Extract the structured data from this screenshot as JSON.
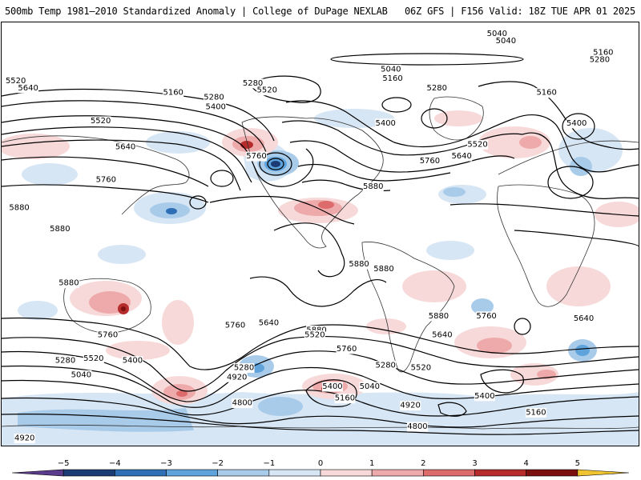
{
  "header": {
    "left_title": "500mb Temp 1981–2010 Standardized Anomaly | College of DuPage NEXLAB",
    "right_title": "06Z GFS | F156 Valid: 18Z TUE APR 01 2025"
  },
  "map": {
    "projection": "equirectangular",
    "contour_field": "500mb geopotential height (dam)",
    "contour_labels": [
      {
        "text": "5040",
        "lon": -80,
        "lat": 85
      },
      {
        "text": "5040",
        "lon": -75,
        "lat": 82
      },
      {
        "text": "5160",
        "lon": -20,
        "lat": 77
      },
      {
        "text": "5280",
        "lon": -22,
        "lat": 74
      },
      {
        "text": "5040",
        "lon": -140,
        "lat": 70
      },
      {
        "text": "5160",
        "lon": -139,
        "lat": 66
      },
      {
        "text": "5280",
        "lon": -114,
        "lat": 62
      },
      {
        "text": "5520",
        "lon": 8,
        "lat": 65
      },
      {
        "text": "5640",
        "lon": 15,
        "lat": 62
      },
      {
        "text": "5160",
        "lon": -52,
        "lat": 60
      },
      {
        "text": "5400",
        "lon": -35,
        "lat": 47
      },
      {
        "text": "5160",
        "lon": 97,
        "lat": 60
      },
      {
        "text": "5280",
        "lon": 142,
        "lat": 64
      },
      {
        "text": "5520",
        "lon": 150,
        "lat": 61
      },
      {
        "text": "5280",
        "lon": 120,
        "lat": 58
      },
      {
        "text": "5400",
        "lon": 121,
        "lat": 54
      },
      {
        "text": "5520",
        "lon": 56,
        "lat": 48
      },
      {
        "text": "5400",
        "lon": -143,
        "lat": 47
      },
      {
        "text": "5520",
        "lon": -91,
        "lat": 38
      },
      {
        "text": "5640",
        "lon": -100,
        "lat": 33
      },
      {
        "text": "5760",
        "lon": -118,
        "lat": 31
      },
      {
        "text": "5760",
        "lon": 144,
        "lat": 33
      },
      {
        "text": "5640",
        "lon": 70,
        "lat": 37
      },
      {
        "text": "5760",
        "lon": 59,
        "lat": 23
      },
      {
        "text": "5880",
        "lon": 10,
        "lat": 11
      },
      {
        "text": "5880",
        "lon": -150,
        "lat": 20
      },
      {
        "text": "5880",
        "lon": -144,
        "lat": -15
      },
      {
        "text": "5880",
        "lon": 178,
        "lat": -41
      },
      {
        "text": "5880",
        "lon": 33,
        "lat": 2
      },
      {
        "text": "5880",
        "lon": 38,
        "lat": -21
      },
      {
        "text": "5880",
        "lon": -158,
        "lat": -13
      },
      {
        "text": "5880",
        "lon": -113,
        "lat": -35
      },
      {
        "text": "5760",
        "lon": -86,
        "lat": -35
      },
      {
        "text": "5760",
        "lon": 60,
        "lat": -43
      },
      {
        "text": "5760",
        "lon": 132,
        "lat": -39
      },
      {
        "text": "5760",
        "lon": -165,
        "lat": -49
      },
      {
        "text": "5640",
        "lon": 151,
        "lat": -38
      },
      {
        "text": "5640",
        "lon": -111,
        "lat": -43
      },
      {
        "text": "5640",
        "lon": -31,
        "lat": -36
      },
      {
        "text": "5520",
        "lon": 177,
        "lat": -43
      },
      {
        "text": "5520",
        "lon": -123,
        "lat": -57
      },
      {
        "text": "5520",
        "lon": 52,
        "lat": -53
      },
      {
        "text": "5400",
        "lon": 74,
        "lat": -54
      },
      {
        "text": "5400",
        "lon": -173,
        "lat": -65
      },
      {
        "text": "5400",
        "lon": -87,
        "lat": -69
      },
      {
        "text": "5280",
        "lon": 137,
        "lat": -57
      },
      {
        "text": "5280",
        "lon": 36,
        "lat": -54
      },
      {
        "text": "5280",
        "lon": -143,
        "lat": -56
      },
      {
        "text": "5160",
        "lon": -166,
        "lat": -70
      },
      {
        "text": "5160",
        "lon": -58,
        "lat": -76
      },
      {
        "text": "5040",
        "lon": -152,
        "lat": -65
      },
      {
        "text": "5040",
        "lon": 45,
        "lat": -60
      },
      {
        "text": "4920",
        "lon": 133,
        "lat": -61
      },
      {
        "text": "4920",
        "lon": -129,
        "lat": -73
      },
      {
        "text": "4920",
        "lon": 13,
        "lat": -87
      },
      {
        "text": "4800",
        "lon": 136,
        "lat": -72
      },
      {
        "text": "4800",
        "lon": -125,
        "lat": -82
      }
    ]
  },
  "colorbar": {
    "min": -6,
    "max": 6,
    "ticks": [
      "−5",
      "−4",
      "−3",
      "−2",
      "−1",
      "0",
      "1",
      "2",
      "3",
      "4",
      "5"
    ],
    "colors": {
      "-6": "#5b3b8c",
      "-5": "#1b3b74",
      "-4": "#2f6fb5",
      "-3": "#5ea3dc",
      "-2": "#a9cbea",
      "-1": "#d7e6f4",
      "0": "#ffffff",
      "1": "#f7d9d9",
      "2": "#eeaaaa",
      "3": "#dd6b6b",
      "4": "#b62c2c",
      "5": "#7c0f0f",
      "6": "#f0c330"
    }
  }
}
